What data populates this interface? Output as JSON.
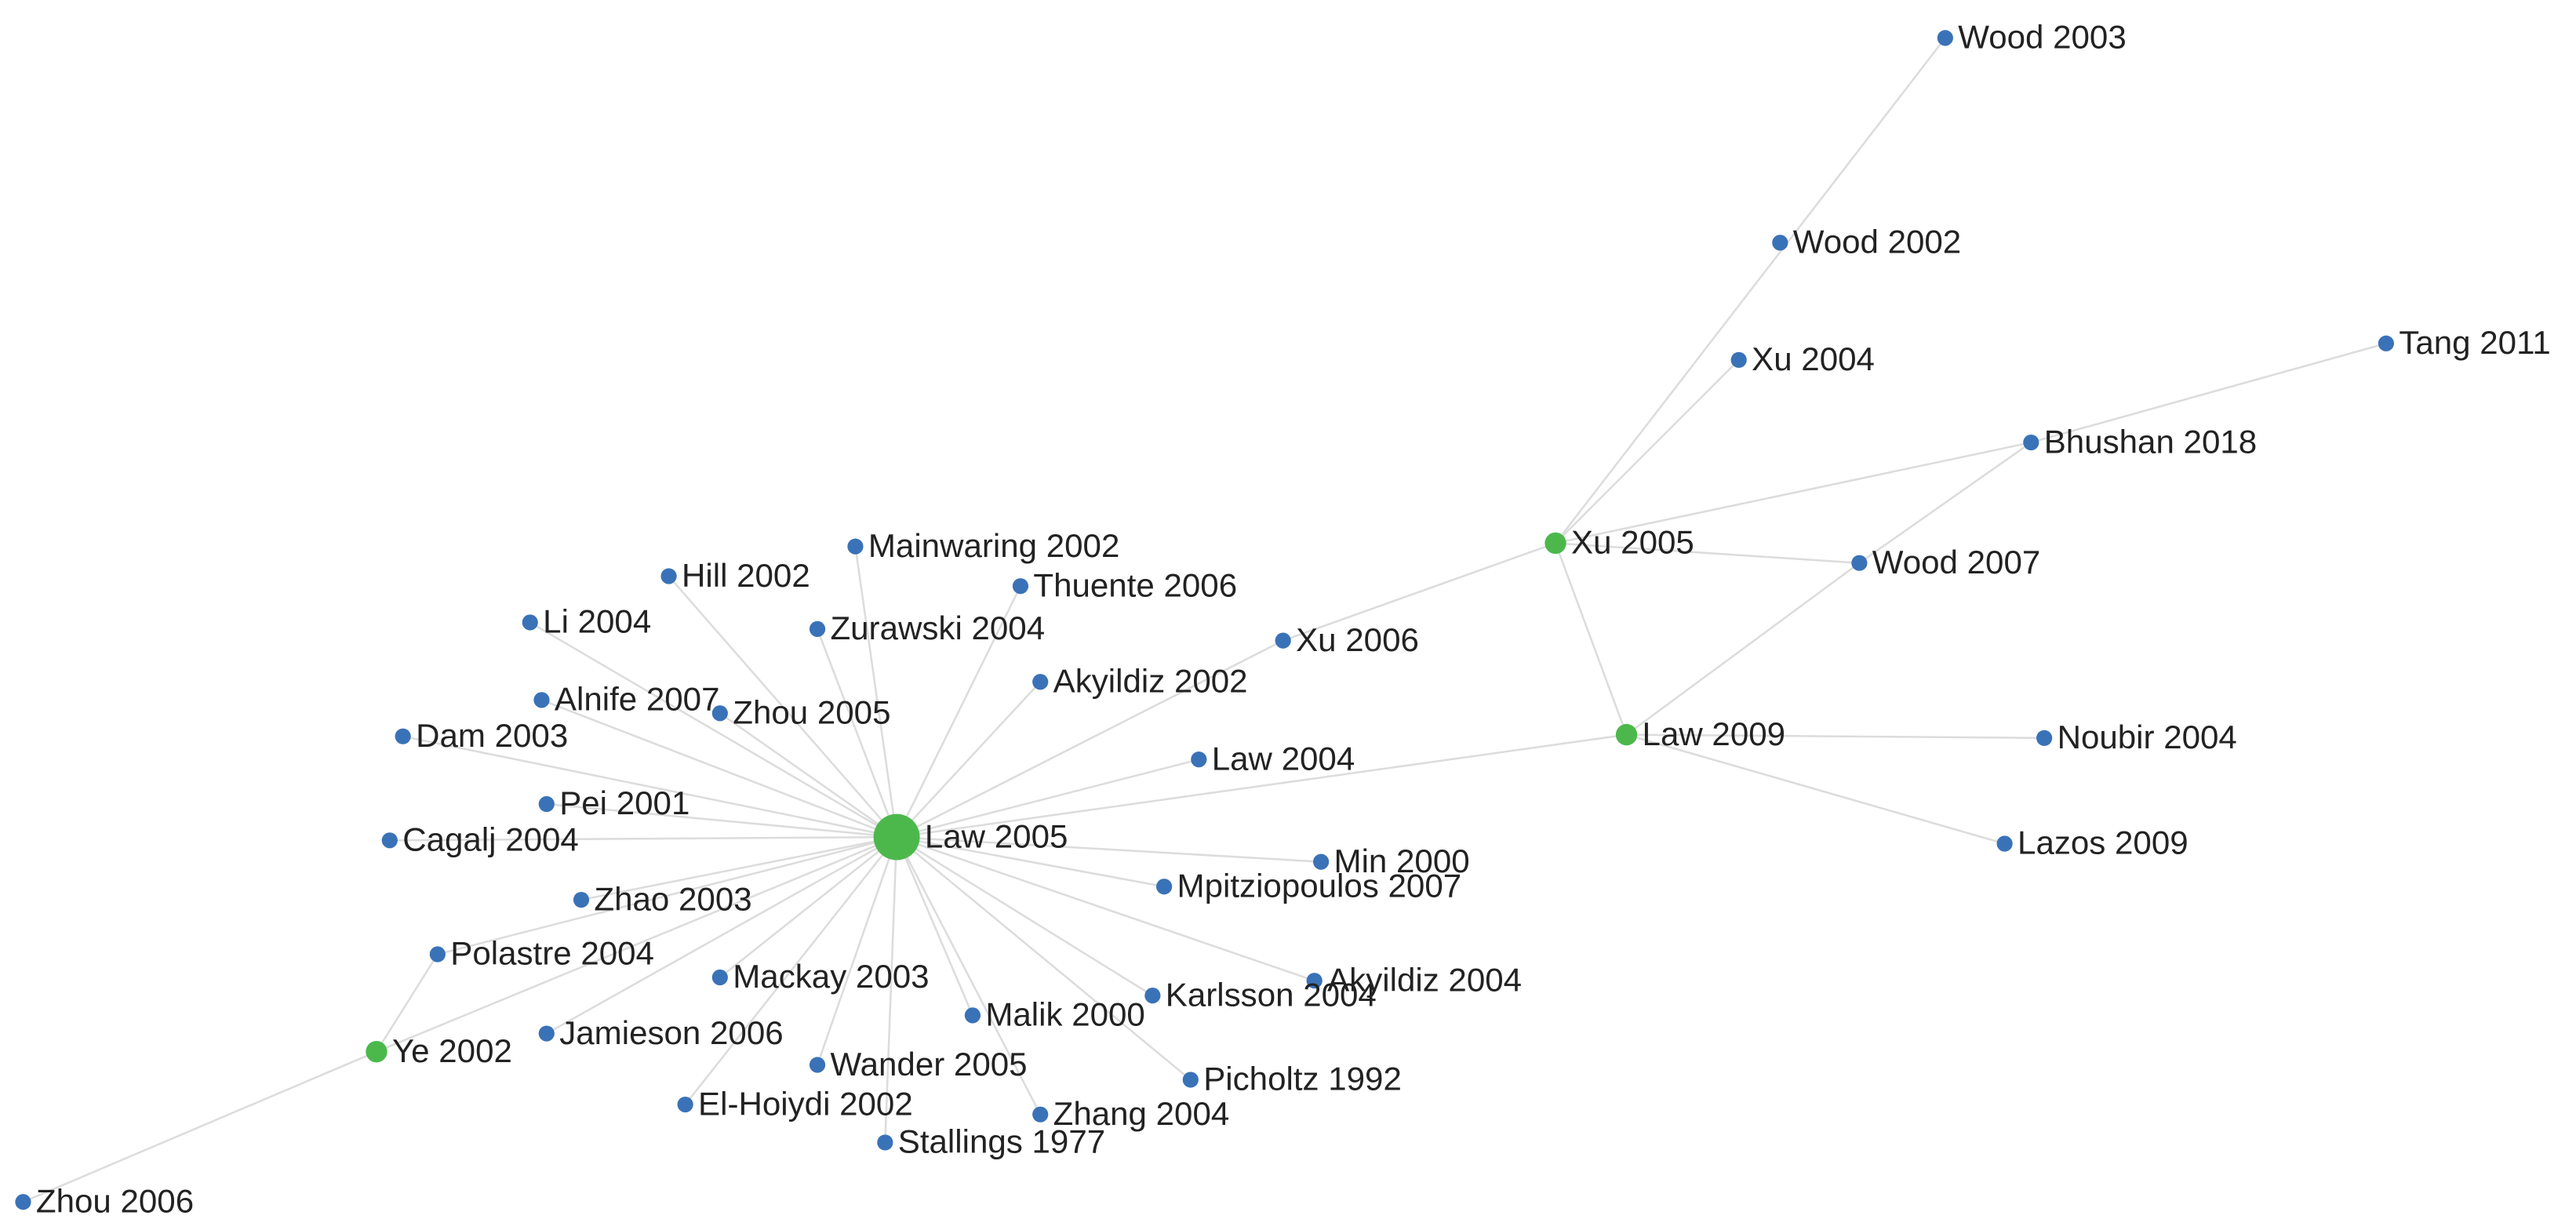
{
  "nodes": [
    {
      "label": "Law 2005"
    },
    {
      "label": "Xu 2005"
    },
    {
      "label": "Law 2009"
    },
    {
      "label": "Ye 2002"
    },
    {
      "label": "Wood 2003"
    },
    {
      "label": "Wood 2002"
    },
    {
      "label": "Xu 2004"
    },
    {
      "label": "Tang 2011"
    },
    {
      "label": "Bhushan 2018"
    },
    {
      "label": "Wood 2007"
    },
    {
      "label": "Noubir 2004"
    },
    {
      "label": "Lazos 2009"
    },
    {
      "label": "Xu 2006"
    },
    {
      "label": "Mainwaring 2002"
    },
    {
      "label": "Hill 2002"
    },
    {
      "label": "Thuente 2006"
    },
    {
      "label": "Li 2004"
    },
    {
      "label": "Zurawski 2004"
    },
    {
      "label": "Akyildiz 2002"
    },
    {
      "label": "Alnife 2007"
    },
    {
      "label": "Zhou 2005"
    },
    {
      "label": "Dam 2003"
    },
    {
      "label": "Law 2004"
    },
    {
      "label": "Pei 2001"
    },
    {
      "label": "Cagalj 2004"
    },
    {
      "label": "Min 2000"
    },
    {
      "label": "Mpitziopoulos 2007"
    },
    {
      "label": "Zhao 2003"
    },
    {
      "label": "Polastre 2004"
    },
    {
      "label": "Mackay 2003"
    },
    {
      "label": "Akyildiz 2004"
    },
    {
      "label": "Karlsson 2004"
    },
    {
      "label": "Malik 2000"
    },
    {
      "label": "Jamieson 2006"
    },
    {
      "label": "Wander 2005"
    },
    {
      "label": "Picholtz 1992"
    },
    {
      "label": "El-Hoiydi 2002"
    },
    {
      "label": "Zhang 2004"
    },
    {
      "label": "Stallings 1977"
    },
    {
      "label": "Zhou 2006"
    }
  ]
}
